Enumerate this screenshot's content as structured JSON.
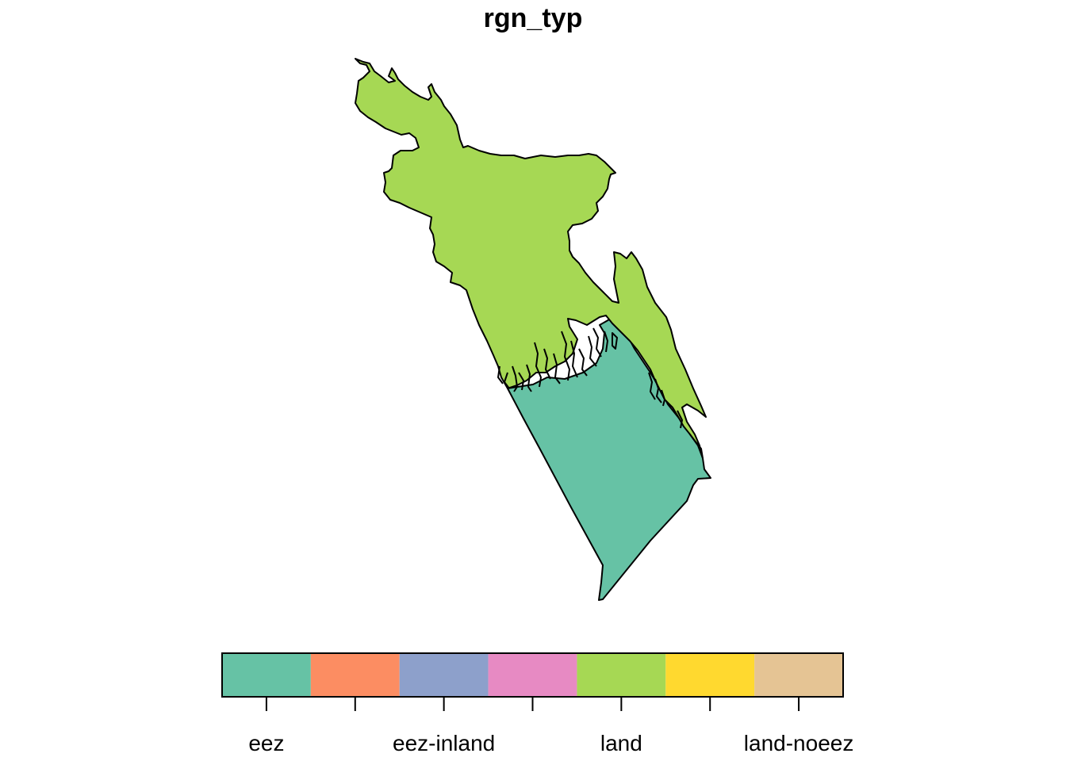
{
  "title": "rgn_typ",
  "regions": [
    {
      "name": "land",
      "color": "#A6D854"
    },
    {
      "name": "eez",
      "color": "#66C2A5"
    }
  ],
  "legend": {
    "categories": [
      {
        "label": "eez",
        "color": "#66C2A5"
      },
      {
        "label": "",
        "color": "#FC8D62"
      },
      {
        "label": "eez-inland",
        "color": "#8DA0CB"
      },
      {
        "label": "",
        "color": "#E78AC3"
      },
      {
        "label": "land",
        "color": "#A6D854"
      },
      {
        "label": "",
        "color": "#FFD92F"
      },
      {
        "label": "land-noeez",
        "color": "#E5C494"
      }
    ]
  }
}
